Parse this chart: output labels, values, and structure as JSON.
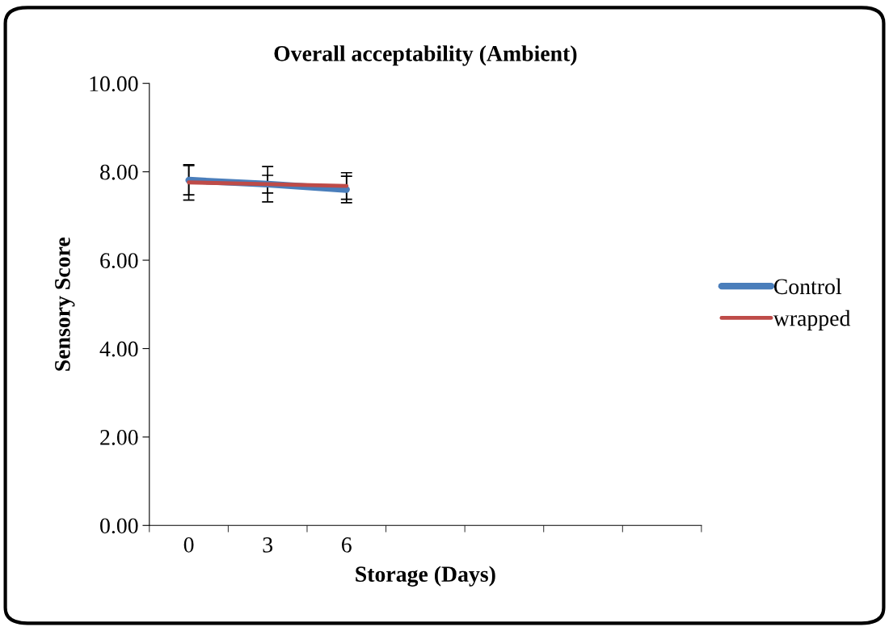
{
  "chart_data": {
    "type": "line",
    "title": "Overall acceptability (Ambient)",
    "xlabel": "Storage (Days)",
    "ylabel": "Sensory Score",
    "categories": [
      "0",
      "3",
      "6",
      null,
      null,
      null,
      null
    ],
    "series": [
      {
        "name": "Control",
        "color": "#4a7ebb",
        "values": [
          7.81,
          7.72,
          7.6,
          null,
          null,
          null,
          null
        ],
        "errors": [
          0.33,
          0.4,
          0.3,
          null,
          null,
          null,
          null
        ]
      },
      {
        "name": "wrapped",
        "color": "#be4b48",
        "values": [
          7.76,
          7.72,
          7.68,
          null,
          null,
          null,
          null
        ],
        "errors": [
          0.4,
          0.2,
          0.3,
          null,
          null,
          null,
          null
        ]
      }
    ],
    "ylim": [
      0,
      10
    ],
    "yticks": [
      {
        "value": 0,
        "label": "0.00"
      },
      {
        "value": 2,
        "label": "2.00"
      },
      {
        "value": 4,
        "label": "4.00"
      },
      {
        "value": 6,
        "label": "6.00"
      },
      {
        "value": 8,
        "label": "8.00"
      },
      {
        "value": 10,
        "label": "10.00"
      }
    ],
    "grid": false,
    "legend": "right",
    "marker": "none",
    "line_style": "solid"
  }
}
